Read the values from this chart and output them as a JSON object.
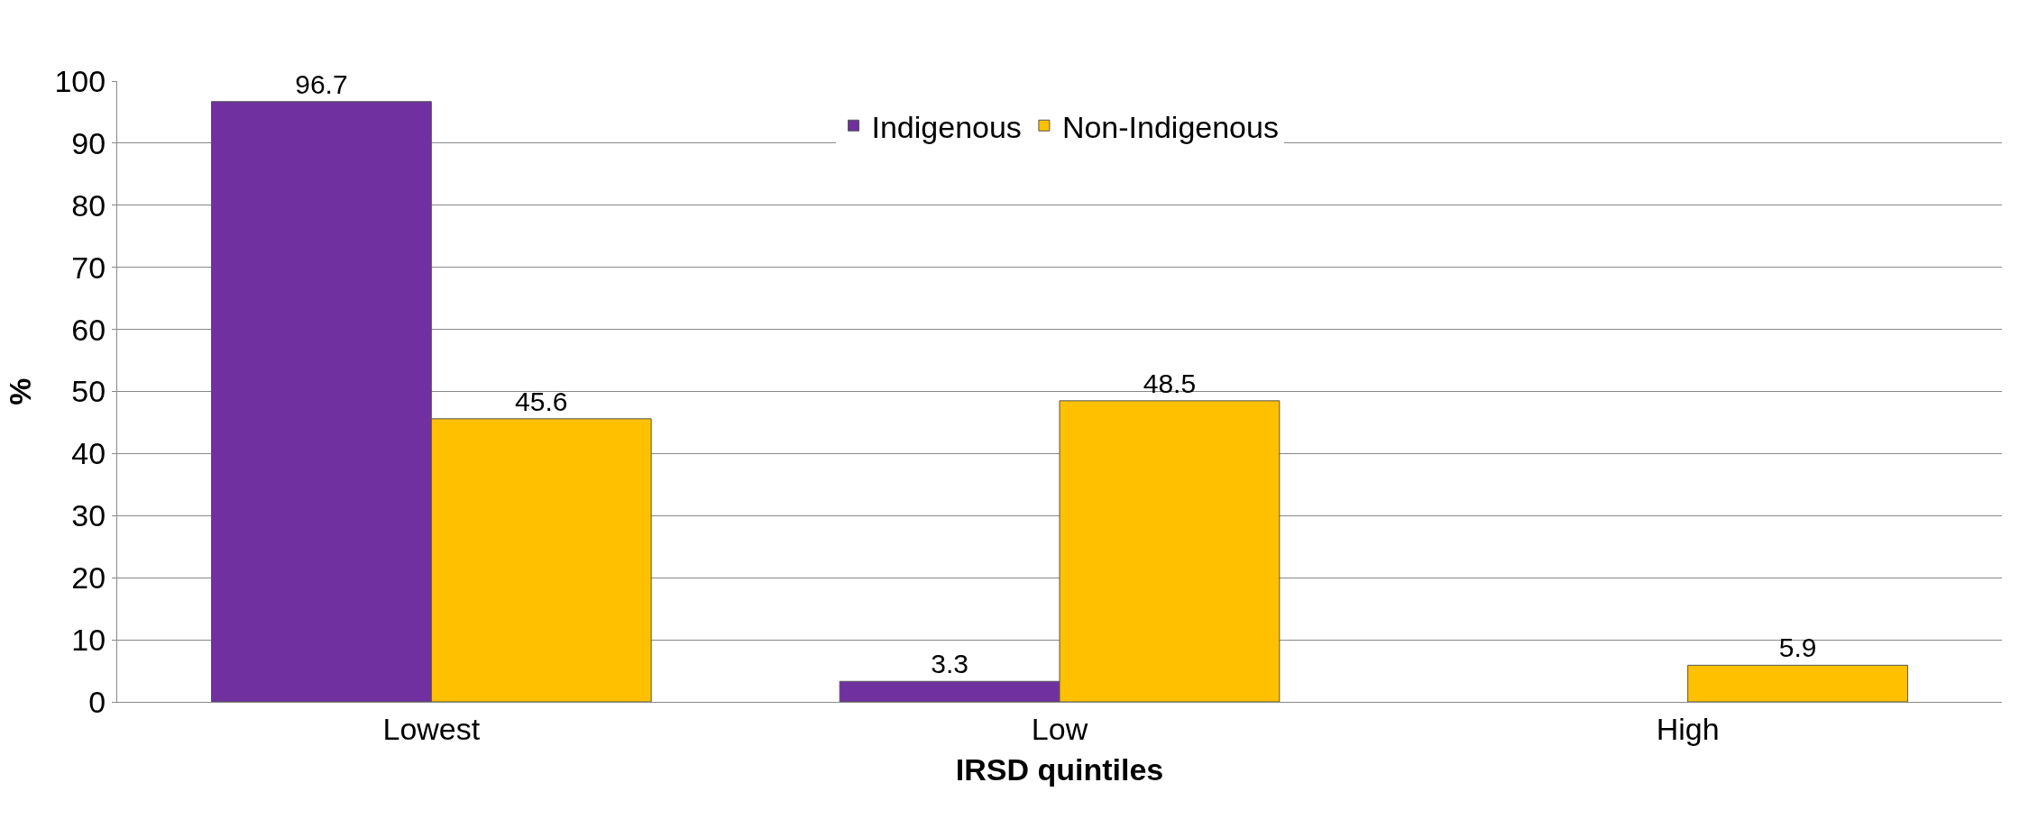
{
  "chart_data": {
    "type": "bar",
    "xlabel": "IRSD quintiles",
    "ylabel": "%",
    "categories": [
      "Lowest",
      "Low",
      "High"
    ],
    "series": [
      {
        "name": "Indigenous",
        "color": "#7030a0",
        "values": [
          96.7,
          3.3,
          null
        ]
      },
      {
        "name": "Non-Indigenous",
        "color": "#ffc000",
        "values": [
          45.6,
          48.5,
          5.9
        ]
      }
    ],
    "ylim": [
      0,
      100
    ],
    "yticks": [
      0,
      10,
      20,
      30,
      40,
      50,
      60,
      70,
      80,
      90,
      100
    ],
    "grid": "y",
    "legend": "top",
    "data_labels": true
  }
}
